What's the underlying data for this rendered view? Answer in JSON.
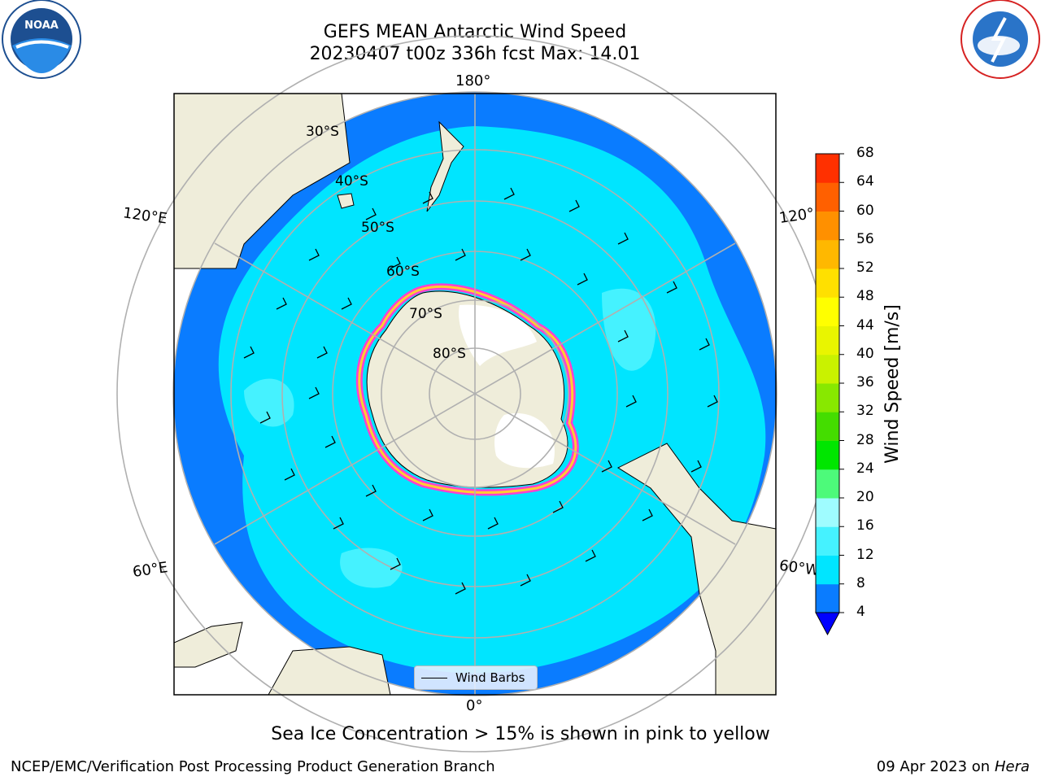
{
  "title_line1": "GEFS MEAN Antarctic Wind Speed",
  "title_line2": "20230407 t00z 336h fcst   Max: 14.01",
  "caption": "Sea Ice Concentration > 15% is shown in pink to yellow",
  "footer_left": "NCEP/EMC/Verification Post Processing Product Generation Branch",
  "footer_date": "09 Apr 2023 on ",
  "footer_host": "Hera",
  "logos": {
    "left": "noara-logo",
    "right": "nws-logo"
  },
  "map": {
    "projection": "south-polar-stereographic",
    "lon_labels": [
      "180°",
      "120°E",
      "120°",
      "60°E",
      "60°W",
      "0°"
    ],
    "lat_labels": [
      "30°S",
      "40°S",
      "50°S",
      "60°S",
      "70°S",
      "80°S"
    ],
    "legend_label": "Wind Barbs"
  },
  "colorbar": {
    "label": "Wind Speed [m/s]",
    "ticks": [
      "4",
      "8",
      "12",
      "16",
      "20",
      "24",
      "28",
      "32",
      "36",
      "40",
      "44",
      "48",
      "52",
      "56",
      "60",
      "64",
      "68"
    ],
    "colors": [
      "#0a7cff",
      "#00e5ff",
      "#45f2ff",
      "#9ffcff",
      "#4dfa7a",
      "#00e600",
      "#44dd00",
      "#88e800",
      "#c9f200",
      "#e9f500",
      "#ffff00",
      "#ffe000",
      "#ffb800",
      "#ff9000",
      "#ff6000",
      "#ff3000",
      "#ff0000"
    ],
    "extend_color": "#0000ff"
  },
  "colors": {
    "land": "#efedda",
    "ocean_low": "#0a7cff",
    "ocean_mid": "#00e5ff",
    "ocean_high": "#45f2ff",
    "ice_edge": "#ff3fd0"
  }
}
